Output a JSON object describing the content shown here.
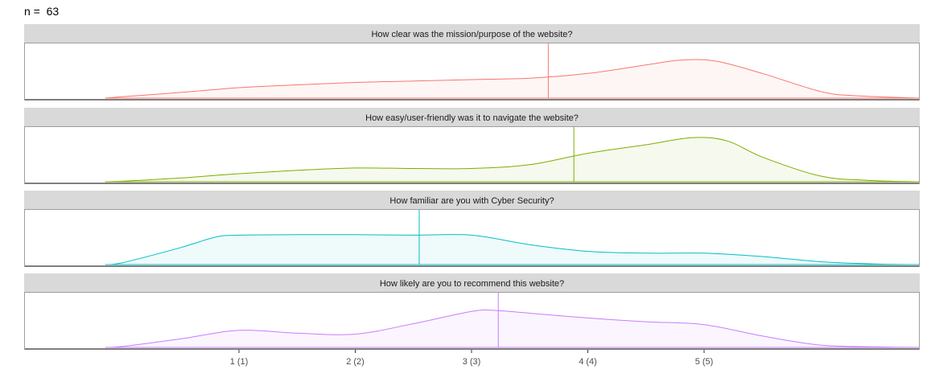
{
  "header": {
    "n_label": "n =",
    "n_value": "63"
  },
  "chart_data": {
    "type": "area",
    "xlim": [
      -0.5,
      6.5
    ],
    "x_ticks": [
      {
        "value": 1,
        "label": "1 (1)"
      },
      {
        "value": 2,
        "label": "2 (2)"
      },
      {
        "value": 3,
        "label": "3 (3)"
      },
      {
        "value": 4,
        "label": "4 (4)"
      },
      {
        "value": 5,
        "label": "5 (5)"
      }
    ],
    "grid": false,
    "panels": [
      {
        "title": "How clear was the mission/purpose of the website?",
        "color": "#F8766D",
        "fill": "#FEF6F5",
        "mean": 3.66,
        "x": [
          -0.15,
          0.0,
          0.5,
          1.0,
          1.5,
          2.0,
          2.5,
          3.0,
          3.5,
          4.0,
          4.5,
          4.8,
          5.1,
          5.5,
          6.0,
          6.3,
          6.85
        ],
        "y": [
          0.0,
          0.03,
          0.12,
          0.22,
          0.28,
          0.33,
          0.36,
          0.39,
          0.42,
          0.52,
          0.7,
          0.8,
          0.78,
          0.52,
          0.14,
          0.05,
          0.0
        ]
      },
      {
        "title": "How easy/user-friendly was it to navigate the website?",
        "color": "#7CAE00",
        "fill": "#F6F9EE",
        "mean": 3.88,
        "x": [
          -0.15,
          0.0,
          0.5,
          1.0,
          1.5,
          2.0,
          2.5,
          3.0,
          3.5,
          4.0,
          4.5,
          4.9,
          5.2,
          5.5,
          6.0,
          6.4,
          6.85
        ],
        "y": [
          0.0,
          0.01,
          0.08,
          0.17,
          0.24,
          0.29,
          0.28,
          0.28,
          0.36,
          0.6,
          0.78,
          0.93,
          0.86,
          0.52,
          0.12,
          0.03,
          0.0
        ]
      },
      {
        "title": "How familiar are you with Cyber Security?",
        "color": "#00BFC4",
        "fill": "#EFFAFB",
        "mean": 2.55,
        "x": [
          -0.15,
          0.0,
          0.5,
          0.8,
          1.0,
          1.5,
          2.0,
          2.5,
          3.0,
          3.5,
          4.0,
          4.5,
          5.0,
          5.5,
          6.0,
          6.5,
          6.85
        ],
        "y": [
          0.0,
          0.04,
          0.36,
          0.58,
          0.62,
          0.63,
          0.63,
          0.62,
          0.62,
          0.42,
          0.28,
          0.24,
          0.24,
          0.17,
          0.06,
          0.01,
          0.0
        ]
      },
      {
        "title": "How likely are you to recommend this website?",
        "color": "#C77CFF",
        "fill": "#FAF5FF",
        "mean": 3.23,
        "x": [
          -0.15,
          0.0,
          0.5,
          1.0,
          1.5,
          2.0,
          2.5,
          3.0,
          3.2,
          3.5,
          4.0,
          4.5,
          5.0,
          5.5,
          6.0,
          6.5,
          6.85
        ],
        "y": [
          0.0,
          0.02,
          0.18,
          0.36,
          0.3,
          0.28,
          0.5,
          0.76,
          0.78,
          0.72,
          0.62,
          0.54,
          0.48,
          0.24,
          0.05,
          0.01,
          0.0
        ]
      }
    ]
  }
}
